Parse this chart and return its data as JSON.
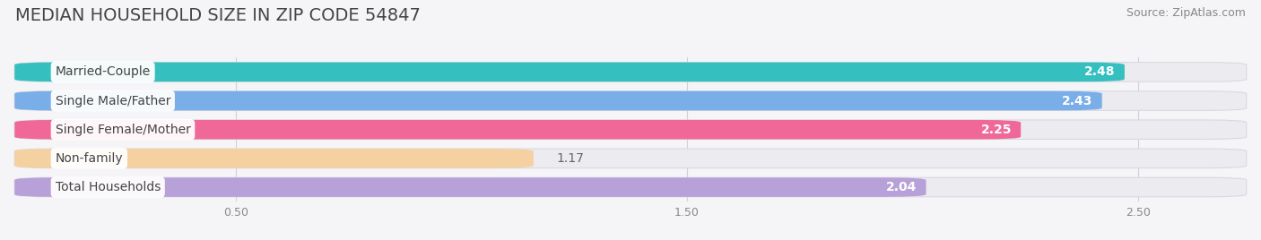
{
  "title": "MEDIAN HOUSEHOLD SIZE IN ZIP CODE 54847",
  "source": "Source: ZipAtlas.com",
  "categories": [
    "Married-Couple",
    "Single Male/Father",
    "Single Female/Mother",
    "Non-family",
    "Total Households"
  ],
  "values": [
    2.48,
    2.43,
    2.25,
    1.17,
    2.04
  ],
  "bar_colors": [
    "#35bfbf",
    "#7aaee8",
    "#f06898",
    "#f5d0a0",
    "#b8a0d8"
  ],
  "xlim": [
    0,
    2.75
  ],
  "xticks": [
    0.5,
    1.5,
    2.5
  ],
  "xtick_labels": [
    "0.50",
    "1.50",
    "2.50"
  ],
  "background_color": "#f5f5f8",
  "bar_bg_color": "#ebebf0",
  "title_fontsize": 14,
  "source_fontsize": 9,
  "label_fontsize": 10,
  "value_fontsize": 10,
  "value_threshold": 2.0
}
